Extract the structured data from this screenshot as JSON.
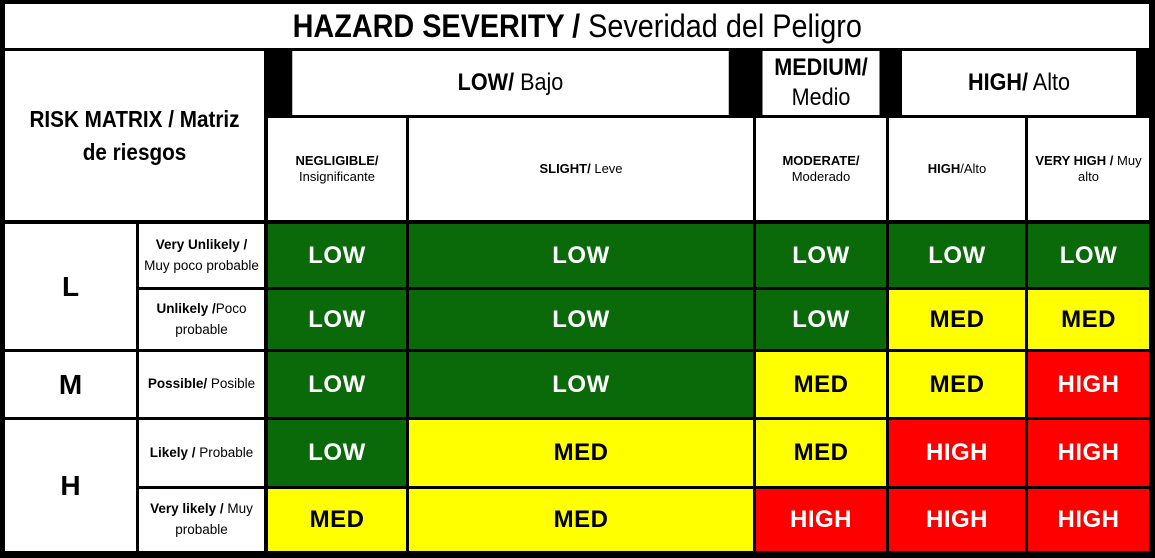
{
  "title": {
    "bold": "HAZARD SEVERITY /",
    "normal": " Severidad del Peligro"
  },
  "matrix_label": "RISK MATRIX / Matriz de riesgos",
  "severity_groups": [
    {
      "bold": "LOW/",
      "normal": " Bajo"
    },
    {
      "bold": "MEDIUM/",
      "normal": " Medio"
    },
    {
      "bold": "HIGH/",
      "normal": " Alto"
    }
  ],
  "severity_levels": [
    {
      "bold": "NEGLIGIBLE/",
      "normal": " Insignificante"
    },
    {
      "bold": "SLIGHT/",
      "normal": " Leve"
    },
    {
      "bold": "MODERATE/",
      "normal": " Moderado"
    },
    {
      "bold": "HIGH",
      "normal": "/Alto"
    },
    {
      "bold": "VERY HIGH /",
      "normal": " Muy alto"
    }
  ],
  "likelihood_groups": [
    "L",
    "M",
    "H"
  ],
  "likelihood_levels": [
    {
      "bold": "Very Unlikely /",
      "normal": " Muy poco probable"
    },
    {
      "bold": "Unlikely /",
      "normal": "Poco probable"
    },
    {
      "bold": "Possible/",
      "normal": " Posible"
    },
    {
      "bold": "Likely /",
      "normal": " Probable"
    },
    {
      "bold": "Very likely /",
      "normal": " Muy probable"
    }
  ],
  "cells": [
    [
      "LOW",
      "LOW",
      "LOW",
      "LOW",
      "LOW"
    ],
    [
      "LOW",
      "LOW",
      "LOW",
      "MED",
      "MED"
    ],
    [
      "LOW",
      "LOW",
      "MED",
      "MED",
      "HIGH"
    ],
    [
      "LOW",
      "MED",
      "MED",
      "HIGH",
      "HIGH"
    ],
    [
      "MED",
      "MED",
      "HIGH",
      "HIGH",
      "HIGH"
    ]
  ],
  "colors": {
    "LOW": "#0a6a0a",
    "MED": "#ffff00",
    "HIGH": "#ff0000"
  }
}
